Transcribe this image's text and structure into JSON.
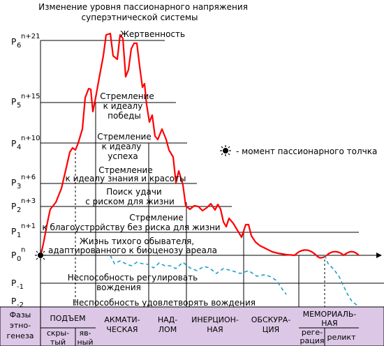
{
  "title": {
    "line1": "Изменение уровня пассионарного напряжения",
    "line2": "суперэтнической системы"
  },
  "levels": [
    {
      "base": "P",
      "sub": "6",
      "sup": "n+21"
    },
    {
      "base": "P",
      "sub": "5",
      "sup": "n+15"
    },
    {
      "base": "P",
      "sub": "4",
      "sup": "n+10"
    },
    {
      "base": "P",
      "sub": "3",
      "sup": "n+6"
    },
    {
      "base": "P",
      "sub": "2",
      "sup": "n+3"
    },
    {
      "base": "P",
      "sub": "1",
      "sup": "n+1"
    },
    {
      "base": "P",
      "sub": "0",
      "sup": "n"
    },
    {
      "base": "P",
      "sub": "-1",
      "sup": ""
    },
    {
      "base": "P",
      "sub": "-2",
      "sup": ""
    }
  ],
  "level_labels": [
    {
      "lines": [
        "Жертвенность"
      ]
    },
    {
      "lines": [
        "Стремление",
        "к идеалу",
        "победы"
      ]
    },
    {
      "lines": [
        "Стремление",
        "к идеалу",
        "успеха"
      ]
    },
    {
      "lines": [
        "Стремление",
        "к идеалу знания и красоты"
      ]
    },
    {
      "lines": [
        "Поиск удачи",
        "с риском для жизни"
      ]
    },
    {
      "lines": [
        "Стремление",
        "к благоустройству без риска для жизни"
      ]
    },
    {
      "lines": [
        "Жизнь тихого обывателя,",
        "адаптированного к биоценозу ареала"
      ]
    },
    {
      "lines": [
        "Неспособность регулировать",
        "вождения"
      ]
    },
    {
      "lines": [
        "Неспособность удовлетворять вождения"
      ]
    }
  ],
  "legend": {
    "icon": "sun-burst-icon",
    "text": "- момент пассионарного толчка"
  },
  "phases": {
    "header": [
      "Фазы",
      "этно-",
      "генеза"
    ],
    "items": [
      {
        "lines": [
          "ПОДЪЕМ"
        ],
        "subs": [
          {
            "lines": [
              "скры-",
              "тый"
            ]
          },
          {
            "lines": [
              "яв-",
              "ный"
            ]
          }
        ]
      },
      {
        "lines": [
          "АКМАТИ-",
          "ЧЕСКАЯ"
        ]
      },
      {
        "lines": [
          "НАД-",
          "ЛОМ"
        ]
      },
      {
        "lines": [
          "ИНЕРЦИОН-",
          "НАЯ"
        ]
      },
      {
        "lines": [
          "ОБСКУРА-",
          "ЦИЯ"
        ]
      },
      {
        "lines": [
          "МЕМОРИАЛЬ-",
          "НАЯ"
        ],
        "subs": [
          {
            "lines": [
              "реге-",
              "рация"
            ]
          },
          {
            "lines": [
              "реликт"
            ]
          }
        ]
      }
    ]
  },
  "colors": {
    "curve": "#ff0000",
    "dashed": "#1e9ec8",
    "phase_bg": "#dcc8e6",
    "lines": "#000000"
  }
}
